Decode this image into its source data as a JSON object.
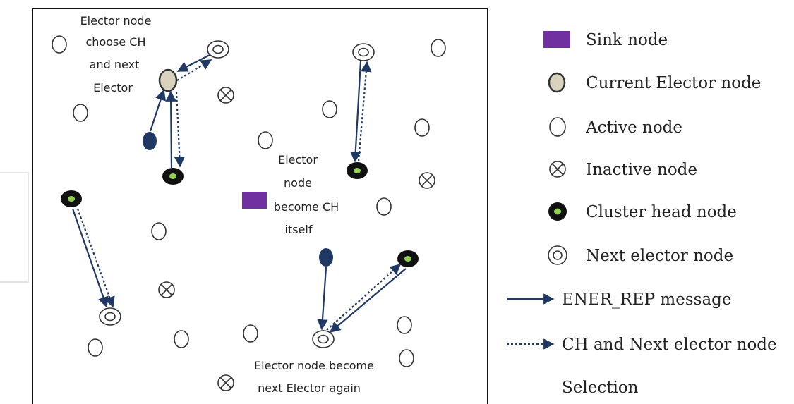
{
  "annotations": {
    "top_left": [
      "Elector node",
      "choose CH",
      "and next",
      "Elector"
    ],
    "center": [
      "Elector",
      "node",
      "become CH",
      "itself"
    ],
    "bottom": [
      "Elector node become",
      "next Elector again"
    ]
  },
  "legend": {
    "sink": "Sink node",
    "current_elector": "Current Elector node",
    "active": "Active node",
    "inactive": "Inactive node",
    "cluster_head": "Cluster head node",
    "next_elector": "Next elector node",
    "ener_rep": "ENER_REP message",
    "ch_selection_line1": "CH and Next elector node",
    "ch_selection_line2": "Selection"
  },
  "colors": {
    "sink": "#7030a0",
    "elector": "#d9d3bd",
    "navy": "#1f3864",
    "cluster_center": "#92d050",
    "arrow": "#1f3864"
  }
}
